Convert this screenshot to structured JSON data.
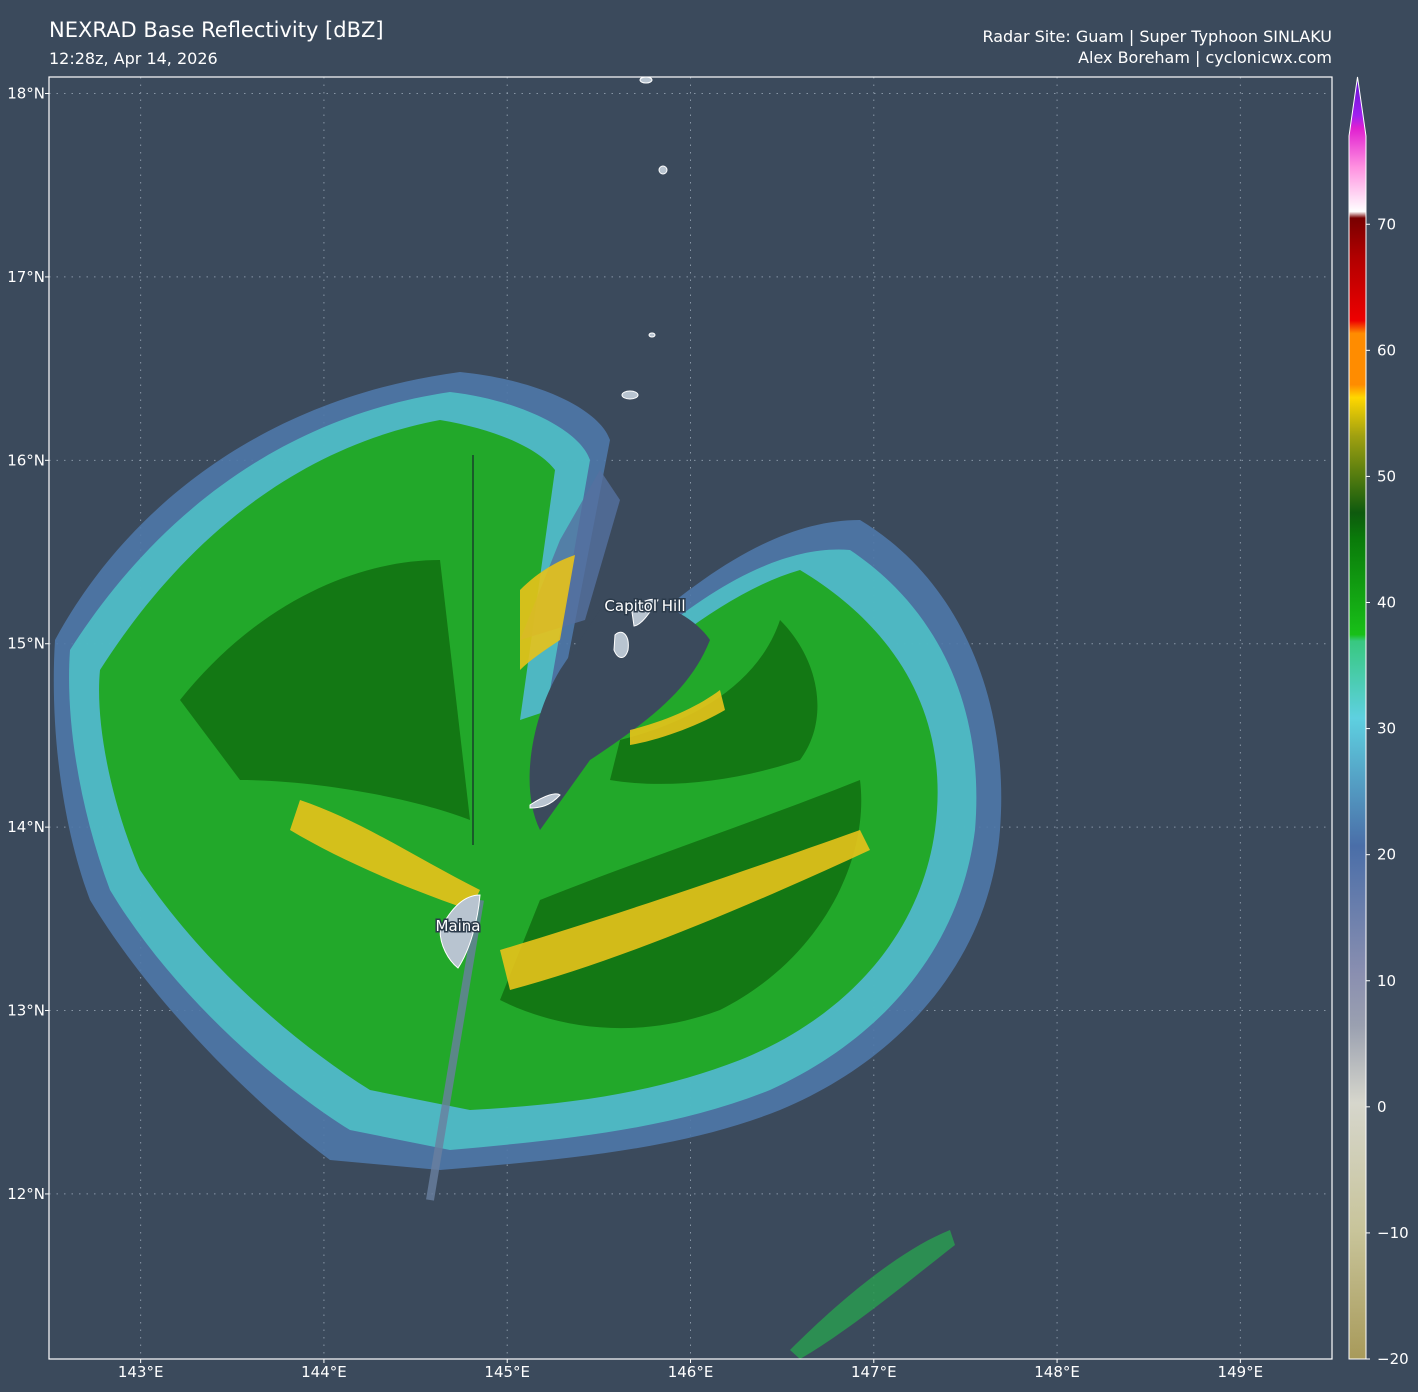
{
  "header": {
    "title": "NEXRAD Base Reflectivity [dBZ]",
    "subtitle": "12:28z, Apr 14, 2026",
    "site": "Radar Site: Guam | Super Typhoon SINLAKU",
    "credit": "Alex Boreham | cyclonicwx.com"
  },
  "map": {
    "xlim": [
      142.5,
      149.5
    ],
    "ylim": [
      11.1,
      18.09
    ],
    "xticks": [
      {
        "value": 143,
        "label": "143°E"
      },
      {
        "value": 144,
        "label": "144°E"
      },
      {
        "value": 145,
        "label": "145°E"
      },
      {
        "value": 146,
        "label": "146°E"
      },
      {
        "value": 147,
        "label": "147°E"
      },
      {
        "value": 148,
        "label": "148°E"
      },
      {
        "value": 149,
        "label": "149°E"
      }
    ],
    "yticks": [
      {
        "value": 12,
        "label": "12°N"
      },
      {
        "value": 13,
        "label": "13°N"
      },
      {
        "value": 14,
        "label": "14°N"
      },
      {
        "value": 15,
        "label": "15°N"
      },
      {
        "value": 16,
        "label": "16°N"
      },
      {
        "value": 17,
        "label": "17°N"
      },
      {
        "value": 18,
        "label": "18°N"
      }
    ],
    "places": [
      "Capitol Hill",
      "Maina"
    ]
  },
  "colorbar": {
    "clim": [
      -20,
      77
    ],
    "ticks": [
      {
        "value": -20,
        "label": "−20"
      },
      {
        "value": -10,
        "label": "−10"
      },
      0,
      10,
      20,
      30,
      40,
      50,
      60,
      70
    ]
  }
}
